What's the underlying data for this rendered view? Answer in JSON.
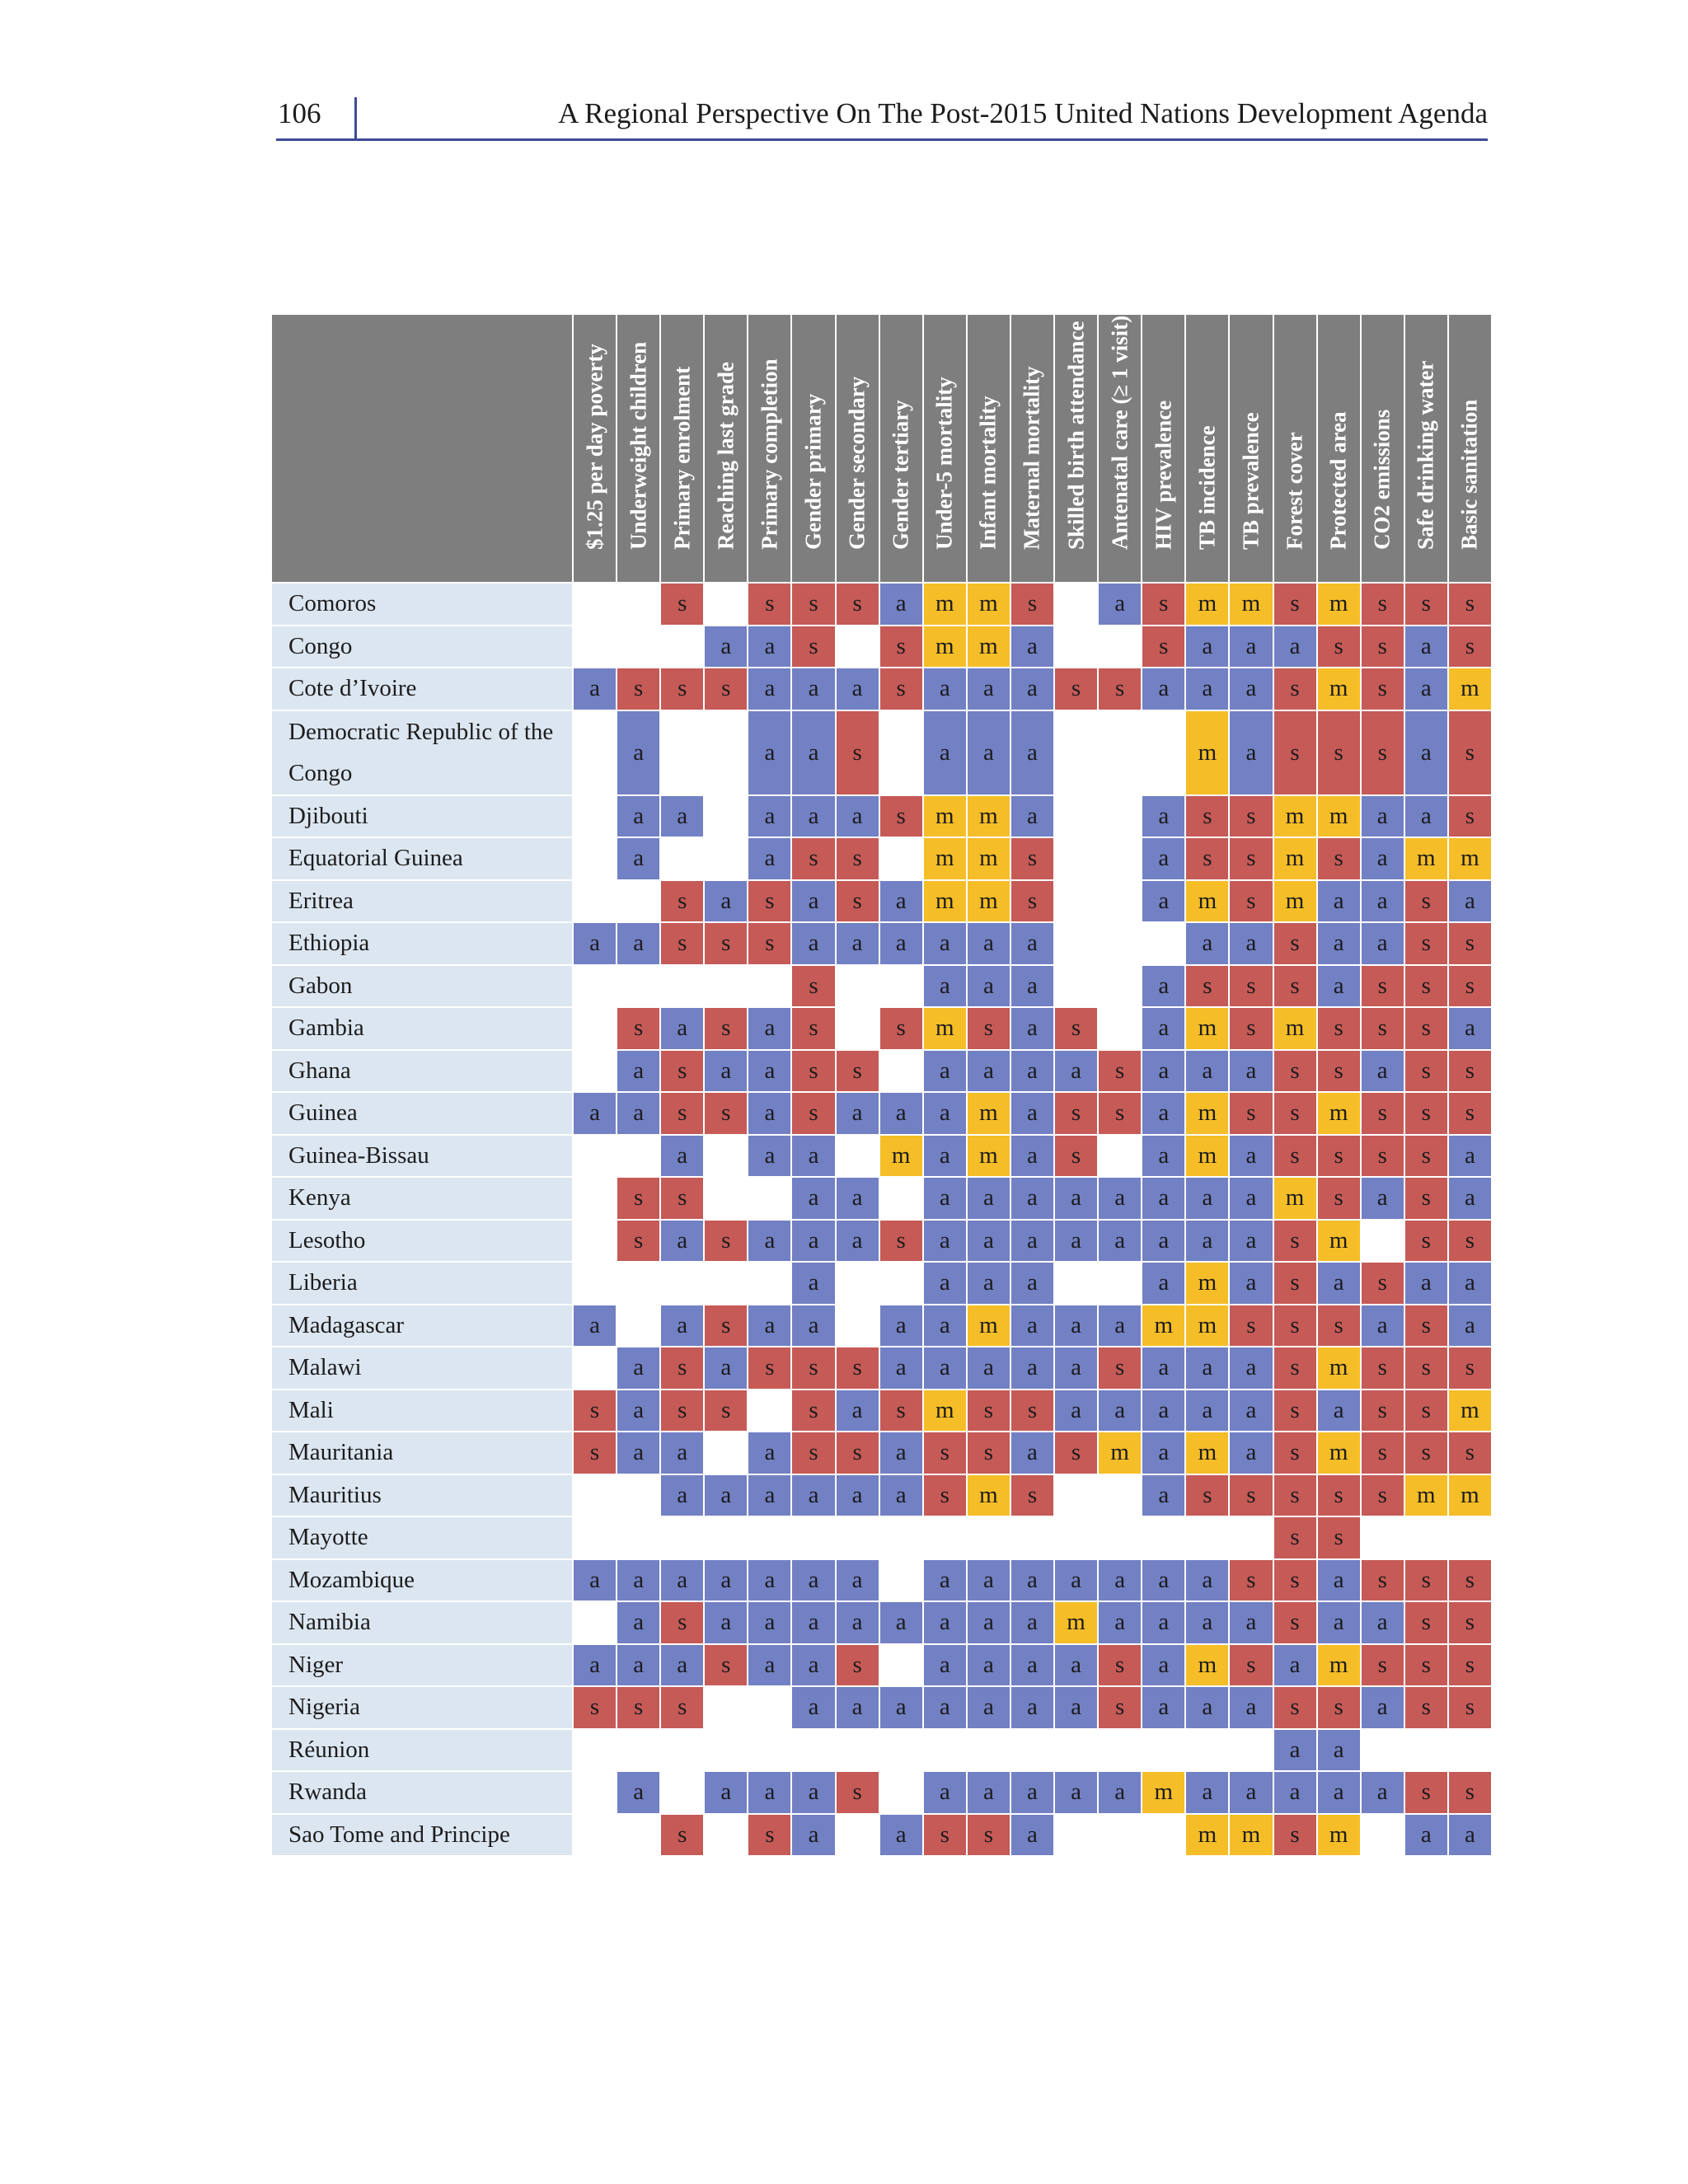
{
  "page": {
    "number": "106",
    "title": "A Regional Perspective On The Post-2015 United Nations Development Agenda"
  },
  "colors": {
    "s": "#c55a57",
    "a": "#7280c4",
    "m": "#f5bd27",
    "header": "#7e7e7e",
    "label_bg": "#dce6f1"
  },
  "table": {
    "columns": [
      "$1.25 per day poverty",
      "Underweight children",
      "Primary enrolment",
      "Reaching last grade",
      "Primary completion",
      "Gender primary",
      "Gender secondary",
      "Gender tertiary",
      "Under-5 mortality",
      "Infant mortality",
      "Maternal mortality",
      "Skilled birth attendance",
      "Antenatal care (≥ 1 visit)",
      "HIV prevalence",
      "TB incidence",
      "TB prevalence",
      "Forest cover",
      "Protected area",
      "CO2 emissions",
      "Safe drinking water",
      "Basic sanitation"
    ],
    "rows": [
      {
        "country": "Comoros",
        "cells": [
          "",
          "",
          "s",
          "",
          "s",
          "s",
          "s",
          "a",
          "m",
          "m",
          "s",
          "",
          "a",
          "s",
          "m",
          "m",
          "s",
          "m",
          "s",
          "s",
          "s"
        ]
      },
      {
        "country": "Congo",
        "cells": [
          "",
          "",
          "",
          "a",
          "a",
          "s",
          "",
          "s",
          "m",
          "m",
          "a",
          "",
          "",
          "s",
          "a",
          "a",
          "a",
          "s",
          "s",
          "a",
          "s"
        ]
      },
      {
        "country": "Cote d’Ivoire",
        "cells": [
          "a",
          "s",
          "s",
          "s",
          "a",
          "a",
          "a",
          "s",
          "a",
          "a",
          "a",
          "s",
          "s",
          "a",
          "a",
          "a",
          "s",
          "m",
          "s",
          "a",
          "m"
        ]
      },
      {
        "country": "Democratic Republic of the Congo",
        "cells": [
          "",
          "a",
          "",
          "",
          "a",
          "a",
          "s",
          "",
          "a",
          "a",
          "a",
          "",
          "",
          "",
          "m",
          "a",
          "s",
          "s",
          "s",
          "a",
          "s"
        ]
      },
      {
        "country": "Djibouti",
        "cells": [
          "",
          "a",
          "a",
          "",
          "a",
          "a",
          "a",
          "s",
          "m",
          "m",
          "a",
          "",
          "",
          "a",
          "s",
          "s",
          "m",
          "m",
          "a",
          "a",
          "s"
        ]
      },
      {
        "country": "Equatorial Guinea",
        "cells": [
          "",
          "a",
          "",
          "",
          "a",
          "s",
          "s",
          "",
          "m",
          "m",
          "s",
          "",
          "",
          "a",
          "s",
          "s",
          "m",
          "s",
          "a",
          "m",
          "m"
        ]
      },
      {
        "country": "Eritrea",
        "cells": [
          "",
          "",
          "s",
          "a",
          "s",
          "a",
          "s",
          "a",
          "m",
          "m",
          "s",
          "",
          "",
          "a",
          "m",
          "s",
          "m",
          "a",
          "a",
          "s",
          "a"
        ]
      },
      {
        "country": "Ethiopia",
        "cells": [
          "a",
          "a",
          "s",
          "s",
          "s",
          "a",
          "a",
          "a",
          "a",
          "a",
          "a",
          "",
          "",
          "",
          "a",
          "a",
          "s",
          "a",
          "a",
          "s",
          "s"
        ]
      },
      {
        "country": "Gabon",
        "cells": [
          "",
          "",
          "",
          "",
          "",
          "s",
          "",
          "",
          "a",
          "a",
          "a",
          "",
          "",
          "a",
          "s",
          "s",
          "s",
          "a",
          "s",
          "s",
          "s"
        ]
      },
      {
        "country": "Gambia",
        "cells": [
          "",
          "s",
          "a",
          "s",
          "a",
          "s",
          "",
          "s",
          "m",
          "s",
          "a",
          "s",
          "",
          "a",
          "m",
          "s",
          "m",
          "s",
          "s",
          "s",
          "a"
        ]
      },
      {
        "country": "Ghana",
        "cells": [
          "",
          "a",
          "s",
          "a",
          "a",
          "s",
          "s",
          "",
          "a",
          "a",
          "a",
          "a",
          "s",
          "a",
          "a",
          "a",
          "s",
          "s",
          "a",
          "s",
          "s"
        ]
      },
      {
        "country": "Guinea",
        "cells": [
          "a",
          "a",
          "s",
          "s",
          "a",
          "s",
          "a",
          "a",
          "a",
          "m",
          "a",
          "s",
          "s",
          "a",
          "m",
          "s",
          "s",
          "m",
          "s",
          "s",
          "s"
        ]
      },
      {
        "country": "Guinea-Bissau",
        "cells": [
          "",
          "",
          "a",
          "",
          "a",
          "a",
          "",
          "m",
          "a",
          "m",
          "a",
          "s",
          "",
          "a",
          "m",
          "a",
          "s",
          "s",
          "s",
          "s",
          "a"
        ]
      },
      {
        "country": "Kenya",
        "cells": [
          "",
          "s",
          "s",
          "",
          "",
          "a",
          "a",
          "",
          "a",
          "a",
          "a",
          "a",
          "a",
          "a",
          "a",
          "a",
          "m",
          "s",
          "a",
          "s",
          "a"
        ]
      },
      {
        "country": "Lesotho",
        "cells": [
          "",
          "s",
          "a",
          "s",
          "a",
          "a",
          "a",
          "s",
          "a",
          "a",
          "a",
          "a",
          "a",
          "a",
          "a",
          "a",
          "s",
          "m",
          "",
          "s",
          "s"
        ]
      },
      {
        "country": "Liberia",
        "cells": [
          "",
          "",
          "",
          "",
          "",
          "a",
          "",
          "",
          "a",
          "a",
          "a",
          "",
          "",
          "a",
          "m",
          "a",
          "s",
          "a",
          "s",
          "a",
          "a"
        ]
      },
      {
        "country": "Madagascar",
        "cells": [
          "a",
          "",
          "a",
          "s",
          "a",
          "a",
          "",
          "a",
          "a",
          "m",
          "a",
          "a",
          "a",
          "m",
          "m",
          "s",
          "s",
          "s",
          "a",
          "s",
          "a"
        ]
      },
      {
        "country": "Malawi",
        "cells": [
          "",
          "a",
          "s",
          "a",
          "s",
          "s",
          "s",
          "a",
          "a",
          "a",
          "a",
          "a",
          "s",
          "a",
          "a",
          "a",
          "s",
          "m",
          "s",
          "s",
          "s"
        ]
      },
      {
        "country": "Mali",
        "cells": [
          "s",
          "a",
          "s",
          "s",
          "",
          "s",
          "a",
          "s",
          "m",
          "s",
          "s",
          "a",
          "a",
          "a",
          "a",
          "a",
          "s",
          "a",
          "s",
          "s",
          "m"
        ]
      },
      {
        "country": "Mauritania",
        "cells": [
          "s",
          "a",
          "a",
          "",
          "a",
          "s",
          "s",
          "a",
          "s",
          "s",
          "a",
          "s",
          "m",
          "a",
          "m",
          "a",
          "s",
          "m",
          "s",
          "s",
          "s"
        ]
      },
      {
        "country": "Mauritius",
        "cells": [
          "",
          "",
          "a",
          "a",
          "a",
          "a",
          "a",
          "a",
          "s",
          "m",
          "s",
          "",
          "",
          "a",
          "s",
          "s",
          "s",
          "s",
          "s",
          "m",
          "m"
        ]
      },
      {
        "country": "Mayotte",
        "cells": [
          "",
          "",
          "",
          "",
          "",
          "",
          "",
          "",
          "",
          "",
          "",
          "",
          "",
          "",
          "",
          "",
          "s",
          "s",
          "",
          "",
          ""
        ]
      },
      {
        "country": "Mozambique",
        "cells": [
          "a",
          "a",
          "a",
          "a",
          "a",
          "a",
          "a",
          "",
          "a",
          "a",
          "a",
          "a",
          "a",
          "a",
          "a",
          "s",
          "s",
          "a",
          "s",
          "s",
          "s"
        ]
      },
      {
        "country": "Namibia",
        "cells": [
          "",
          "a",
          "s",
          "a",
          "a",
          "a",
          "a",
          "a",
          "a",
          "a",
          "a",
          "m",
          "a",
          "a",
          "a",
          "a",
          "s",
          "a",
          "a",
          "s",
          "s"
        ]
      },
      {
        "country": "Niger",
        "cells": [
          "a",
          "a",
          "a",
          "s",
          "a",
          "a",
          "s",
          "",
          "a",
          "a",
          "a",
          "a",
          "s",
          "a",
          "m",
          "s",
          "a",
          "m",
          "s",
          "s",
          "s"
        ]
      },
      {
        "country": "Nigeria",
        "cells": [
          "s",
          "s",
          "s",
          "",
          "",
          "a",
          "a",
          "a",
          "a",
          "a",
          "a",
          "a",
          "s",
          "a",
          "a",
          "a",
          "s",
          "s",
          "a",
          "s",
          "s"
        ]
      },
      {
        "country": "Réunion",
        "cells": [
          "",
          "",
          "",
          "",
          "",
          "",
          "",
          "",
          "",
          "",
          "",
          "",
          "",
          "",
          "",
          "",
          "a",
          "a",
          "",
          "",
          ""
        ]
      },
      {
        "country": "Rwanda",
        "cells": [
          "",
          "a",
          "",
          "a",
          "a",
          "a",
          "s",
          "",
          "a",
          "a",
          "a",
          "a",
          "a",
          "m",
          "a",
          "a",
          "a",
          "a",
          "a",
          "s",
          "s"
        ]
      },
      {
        "country": "Sao Tome and Principe",
        "cells": [
          "",
          "",
          "s",
          "",
          "s",
          "a",
          "",
          "a",
          "s",
          "s",
          "a",
          "",
          "",
          "",
          "m",
          "m",
          "s",
          "m",
          "",
          "a",
          "a"
        ]
      }
    ]
  }
}
